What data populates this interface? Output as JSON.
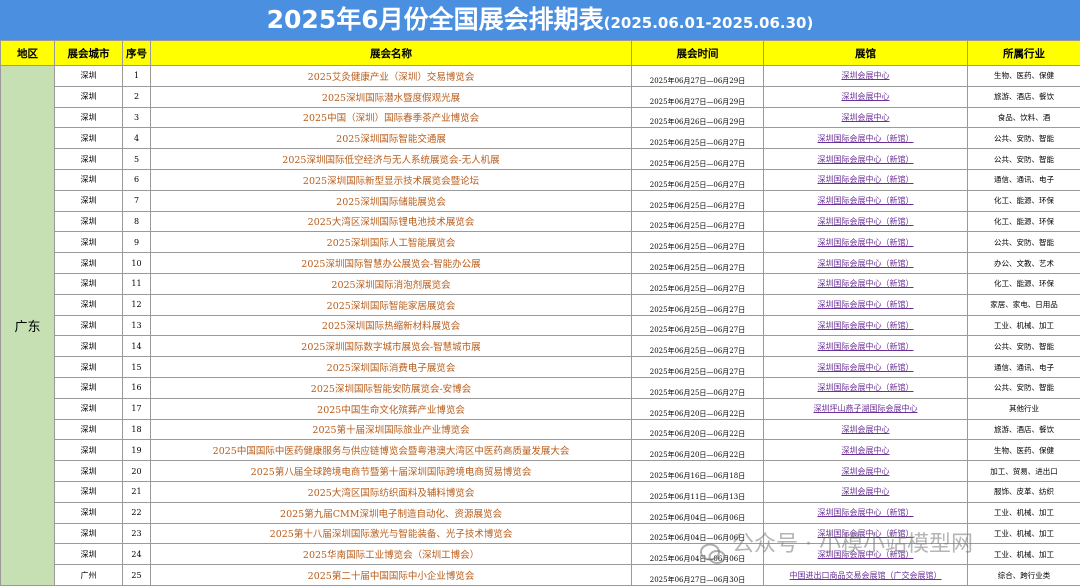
{
  "title": {
    "main": "2025年6月份全国展会排期表",
    "range": "(2025.06.01-2025.06.30)"
  },
  "headers": {
    "region": "地区",
    "city": "展会城市",
    "num": "序号",
    "name": "展会名称",
    "date": "展会时间",
    "venue": "展馆",
    "industry": "所属行业"
  },
  "region_label": "广东",
  "rows": [
    {
      "city": "深圳",
      "num": "1",
      "name": "2025艾灸健康产业（深圳）交易博览会",
      "date": "2025年06月27日—06月29日",
      "venue": "深圳会展中心",
      "industry": "生物、医药、保健"
    },
    {
      "city": "深圳",
      "num": "2",
      "name": "2025深圳国际潜水暨度假观光展",
      "date": "2025年06月27日—06月29日",
      "venue": "深圳会展中心",
      "industry": "旅游、酒店、餐饮"
    },
    {
      "city": "深圳",
      "num": "3",
      "name": "2025中国（深圳）国际春季茶产业博览会",
      "date": "2025年06月26日—06月29日",
      "venue": "深圳会展中心",
      "industry": "食品、饮料、酒"
    },
    {
      "city": "深圳",
      "num": "4",
      "name": "2025深圳国际智能交通展",
      "date": "2025年06月25日—06月27日",
      "venue": "深圳国际会展中心（新馆）",
      "industry": "公共、安防、智能"
    },
    {
      "city": "深圳",
      "num": "5",
      "name": "2025深圳国际低空经济与无人系统展览会-无人机展",
      "date": "2025年06月25日—06月27日",
      "venue": "深圳国际会展中心（新馆）",
      "industry": "公共、安防、智能"
    },
    {
      "city": "深圳",
      "num": "6",
      "name": "2025深圳国际新型显示技术展览会暨论坛",
      "date": "2025年06月25日—06月27日",
      "venue": "深圳国际会展中心（新馆）",
      "industry": "通信、通讯、电子"
    },
    {
      "city": "深圳",
      "num": "7",
      "name": "2025深圳国际储能展览会",
      "date": "2025年06月25日—06月27日",
      "venue": "深圳国际会展中心（新馆）",
      "industry": "化工、能源、环保"
    },
    {
      "city": "深圳",
      "num": "8",
      "name": "2025大湾区深圳国际锂电池技术展览会",
      "date": "2025年06月25日—06月27日",
      "venue": "深圳国际会展中心（新馆）",
      "industry": "化工、能源、环保"
    },
    {
      "city": "深圳",
      "num": "9",
      "name": "2025深圳国际人工智能展览会",
      "date": "2025年06月25日—06月27日",
      "venue": "深圳国际会展中心（新馆）",
      "industry": "公共、安防、智能"
    },
    {
      "city": "深圳",
      "num": "10",
      "name": "2025深圳国际智慧办公展览会-智能办公展",
      "date": "2025年06月25日—06月27日",
      "venue": "深圳国际会展中心（新馆）",
      "industry": "办公、文教、艺术"
    },
    {
      "city": "深圳",
      "num": "11",
      "name": "2025深圳国际消泡剂展览会",
      "date": "2025年06月25日—06月27日",
      "venue": "深圳国际会展中心（新馆）",
      "industry": "化工、能源、环保"
    },
    {
      "city": "深圳",
      "num": "12",
      "name": "2025深圳国际智能家居展览会",
      "date": "2025年06月25日—06月27日",
      "venue": "深圳国际会展中心（新馆）",
      "industry": "家居、家电、日用品"
    },
    {
      "city": "深圳",
      "num": "13",
      "name": "2025深圳国际热缩新材料展览会",
      "date": "2025年06月25日—06月27日",
      "venue": "深圳国际会展中心（新馆）",
      "industry": "工业、机械、加工"
    },
    {
      "city": "深圳",
      "num": "14",
      "name": "2025深圳国际数字城市展览会-智慧城市展",
      "date": "2025年06月25日—06月27日",
      "venue": "深圳国际会展中心（新馆）",
      "industry": "公共、安防、智能"
    },
    {
      "city": "深圳",
      "num": "15",
      "name": "2025深圳国际消费电子展览会",
      "date": "2025年06月25日—06月27日",
      "venue": "深圳国际会展中心（新馆）",
      "industry": "通信、通讯、电子"
    },
    {
      "city": "深圳",
      "num": "16",
      "name": "2025深圳国际智能安防展览会-安博会",
      "date": "2025年06月25日—06月27日",
      "venue": "深圳国际会展中心（新馆）",
      "industry": "公共、安防、智能"
    },
    {
      "city": "深圳",
      "num": "17",
      "name": "2025中国生命文化殡葬产业博览会",
      "date": "2025年06月20日—06月22日",
      "venue": "深圳坪山燕子湖国际会展中心",
      "industry": "其他行业"
    },
    {
      "city": "深圳",
      "num": "18",
      "name": "2025第十届深圳国际旅业产业博览会",
      "date": "2025年06月20日—06月22日",
      "venue": "深圳会展中心",
      "industry": "旅游、酒店、餐饮"
    },
    {
      "city": "深圳",
      "num": "19",
      "name": "2025中国国际中医药健康服务与供应链博览会暨粤港澳大湾区中医药高质量发展大会",
      "date": "2025年06月20日—06月22日",
      "venue": "深圳会展中心",
      "industry": "生物、医药、保健"
    },
    {
      "city": "深圳",
      "num": "20",
      "name": "2025第八届全球跨境电商节暨第十届深圳国际跨境电商贸易博览会",
      "date": "2025年06月16日—06月18日",
      "venue": "深圳会展中心",
      "industry": "加工、贸易、进出口"
    },
    {
      "city": "深圳",
      "num": "21",
      "name": "2025大湾区国际纺织面料及辅料博览会",
      "date": "2025年06月11日—06月13日",
      "venue": "深圳会展中心",
      "industry": "服饰、皮革、纺织"
    },
    {
      "city": "深圳",
      "num": "22",
      "name": "2025第九届CMM深圳电子制造自动化、资源展览会",
      "date": "2025年06月04日—06月06日",
      "venue": "深圳国际会展中心（新馆）",
      "industry": "工业、机械、加工"
    },
    {
      "city": "深圳",
      "num": "23",
      "name": "2025第十八届深圳国际激光与智能装备、光子技术博览会",
      "date": "2025年06月04日—06月06日",
      "venue": "深圳国际会展中心（新馆）",
      "industry": "工业、机械、加工"
    },
    {
      "city": "深圳",
      "num": "24",
      "name": "2025华南国际工业博览会（深圳工博会）",
      "date": "2025年06月04日—06月06日",
      "venue": "深圳国际会展中心（新馆）",
      "industry": "工业、机械、加工"
    },
    {
      "city": "广州",
      "num": "25",
      "name": "2025第二十届中国国际中小企业博览会",
      "date": "2025年06月27日—06月30日",
      "venue": "中国进出口商品交易会展馆（广交会展馆）",
      "industry": "综合、跨行业类"
    }
  ],
  "watermark": {
    "icon": "wechat-icon",
    "text": "公众号 · 小模小站模型网"
  }
}
